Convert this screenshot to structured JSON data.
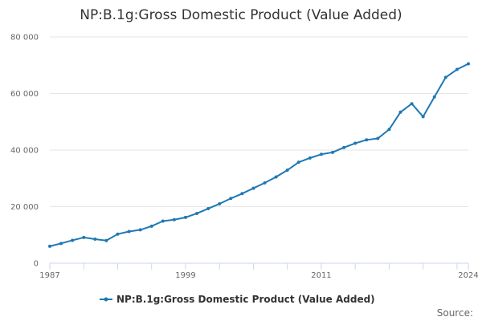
{
  "chart_data": {
    "type": "line",
    "title": "NP:B.1g:Gross Domestic Product (Value Added)",
    "xlabel": "",
    "ylabel": "",
    "x": [
      1987,
      1988,
      1989,
      1990,
      1991,
      1992,
      1993,
      1994,
      1995,
      1996,
      1997,
      1998,
      1999,
      2000,
      2001,
      2002,
      2003,
      2004,
      2005,
      2006,
      2007,
      2008,
      2009,
      2010,
      2011,
      2012,
      2013,
      2014,
      2015,
      2016,
      2017,
      2018,
      2019,
      2020,
      2021,
      2022,
      2023,
      2024
    ],
    "series": [
      {
        "name": "NP:B.1g:Gross Domestic Product (Value Added)",
        "color": "#1f78b4",
        "values": [
          6000,
          7000,
          8100,
          9100,
          8500,
          8000,
          10300,
          11200,
          11800,
          13100,
          14900,
          15400,
          16200,
          17600,
          19300,
          21000,
          22900,
          24600,
          26500,
          28400,
          30500,
          32900,
          35700,
          37200,
          38500,
          39200,
          40900,
          42400,
          43600,
          44100,
          47300,
          53400,
          56400,
          51800,
          58800,
          65700,
          68500,
          70500
        ]
      }
    ],
    "xlim": [
      1987,
      2024
    ],
    "ylim": [
      0,
      80000
    ],
    "x_tick_labels": [
      "1987",
      "1999",
      "2011",
      "2024"
    ],
    "y_tick_labels": [
      "0",
      "20 000",
      "40 000",
      "60 000",
      "80 000"
    ],
    "grid": true,
    "legend_position": "bottom"
  },
  "source_label": "Source:"
}
